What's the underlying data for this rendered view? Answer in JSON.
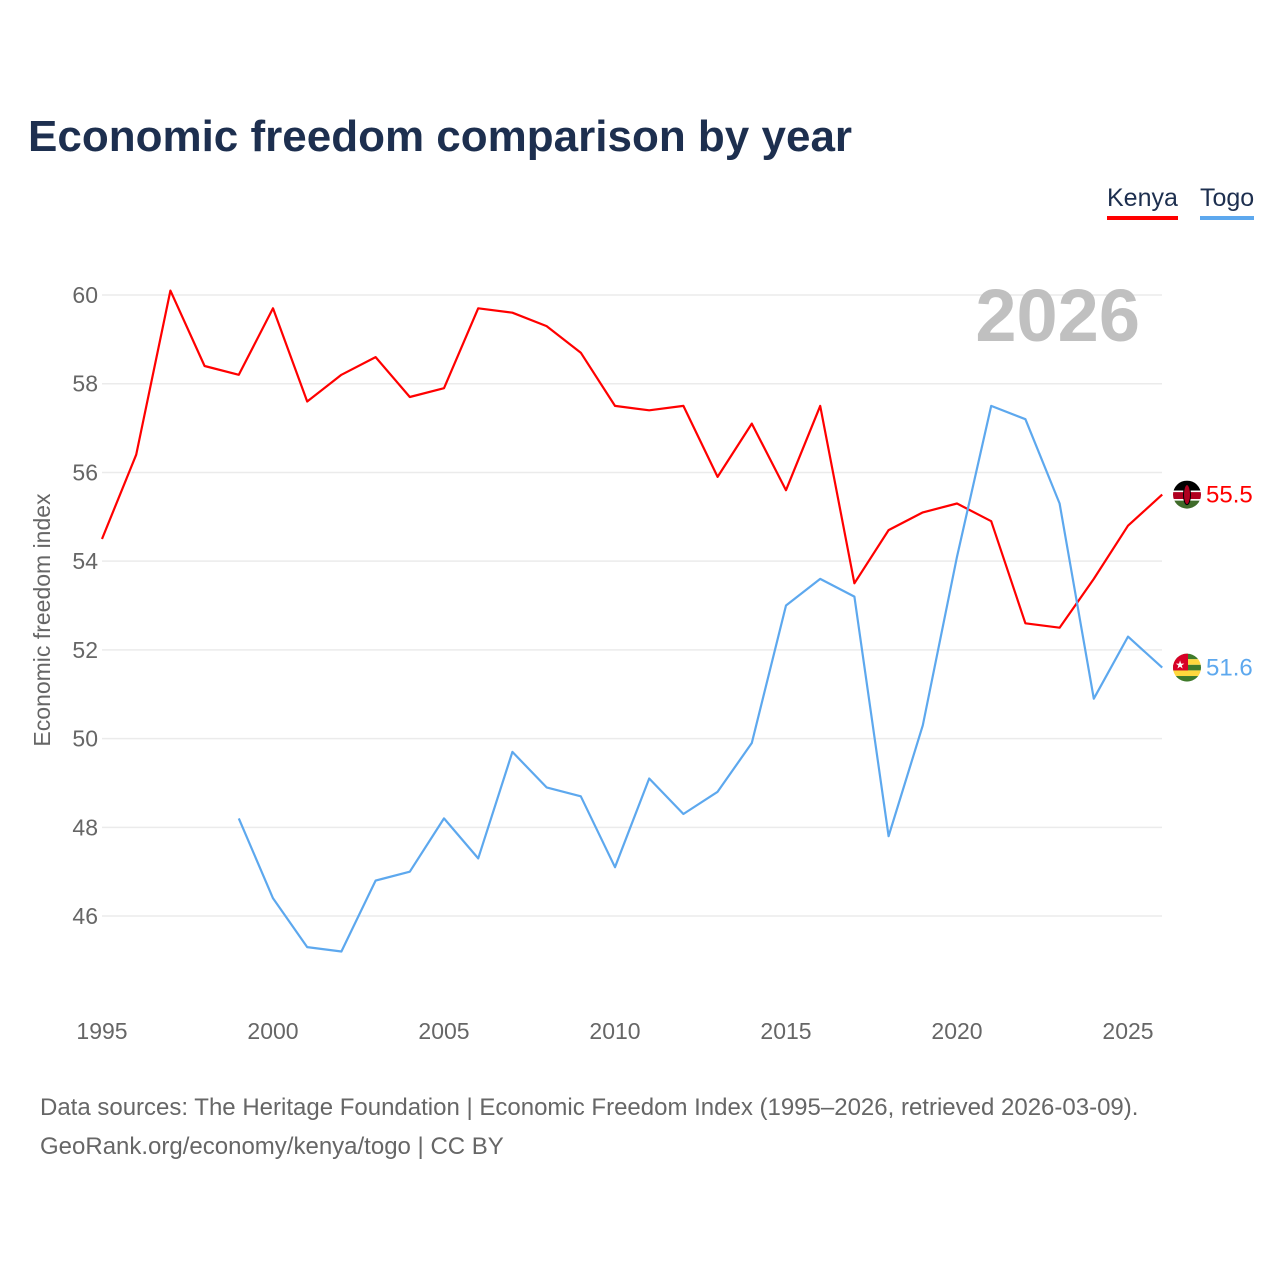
{
  "chart_data": {
    "type": "line",
    "title": "Economic freedom comparison by year",
    "xlabel": "",
    "ylabel": "Economic freedom index",
    "watermark_year": "2026",
    "xlim": [
      1995,
      2026
    ],
    "ylim": [
      44,
      61
    ],
    "x_ticks": [
      "1995",
      "2000",
      "2005",
      "2010",
      "2015",
      "2020",
      "2025"
    ],
    "y_ticks": [
      "46",
      "48",
      "50",
      "52",
      "54",
      "56",
      "58",
      "60"
    ],
    "grid": true,
    "legend_placement": "top-right",
    "series": [
      {
        "name": "Kenya",
        "color": "#ff0000",
        "end_label": "55.5",
        "x": [
          1995,
          1996,
          1997,
          1998,
          1999,
          2000,
          2001,
          2002,
          2003,
          2004,
          2005,
          2006,
          2007,
          2008,
          2009,
          2010,
          2011,
          2012,
          2013,
          2014,
          2015,
          2016,
          2017,
          2018,
          2019,
          2020,
          2021,
          2022,
          2023,
          2024,
          2025,
          2026
        ],
        "values": [
          54.5,
          56.4,
          60.1,
          58.4,
          58.2,
          59.7,
          57.6,
          58.2,
          58.6,
          57.7,
          57.9,
          59.7,
          59.6,
          59.3,
          58.7,
          57.5,
          57.4,
          57.5,
          55.9,
          57.1,
          55.6,
          57.5,
          53.5,
          54.7,
          55.1,
          55.3,
          54.9,
          52.6,
          52.5,
          53.6,
          54.8,
          55.5
        ]
      },
      {
        "name": "Togo",
        "color": "#5da8ee",
        "end_label": "51.6",
        "x": [
          1999,
          2000,
          2001,
          2002,
          2003,
          2004,
          2005,
          2006,
          2007,
          2008,
          2009,
          2010,
          2011,
          2012,
          2013,
          2014,
          2015,
          2016,
          2017,
          2018,
          2019,
          2020,
          2021,
          2022,
          2023,
          2024,
          2025,
          2026
        ],
        "values": [
          48.2,
          46.4,
          45.3,
          45.2,
          46.8,
          47.0,
          48.2,
          47.3,
          49.7,
          48.9,
          48.7,
          47.1,
          49.1,
          48.3,
          48.8,
          49.9,
          53.0,
          53.6,
          53.2,
          47.8,
          50.3,
          54.1,
          57.5,
          57.2,
          55.3,
          50.9,
          52.3,
          51.6
        ]
      }
    ]
  },
  "source": {
    "line1": "Data sources: The Heritage Foundation | Economic Freedom Index (1995–2026, retrieved 2026-03-09).",
    "line2": "GeoRank.org/economy/kenya/togo | CC BY"
  }
}
